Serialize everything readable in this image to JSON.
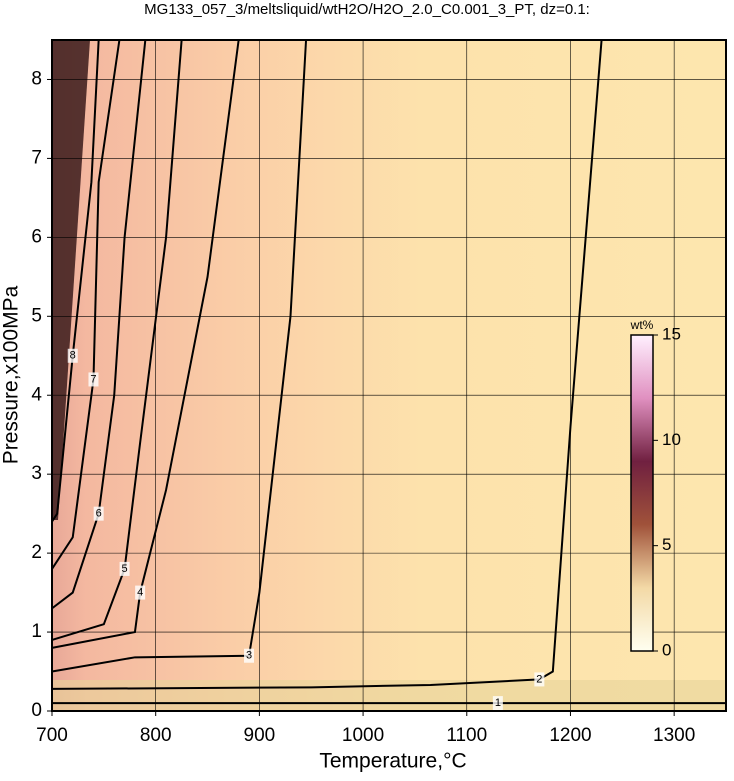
{
  "chart_data": {
    "type": "contour",
    "title": "MG133_057_3/meltsliquid/wtH2O/H2O_2.0_C0.001_3_PT, dz=0.1:",
    "x_label": "Temperature,°C",
    "y_label": "Pressure,x100MPa",
    "xlim": [
      700,
      1350
    ],
    "xticks": [
      700,
      800,
      900,
      1000,
      1100,
      1200,
      1300
    ],
    "ylim": [
      0,
      8.5
    ],
    "yticks": [
      0,
      1,
      2,
      3,
      4,
      5,
      6,
      7,
      8
    ],
    "grid": true,
    "line_color": "#000000",
    "contours": [
      {
        "level": 1,
        "x": [
          700,
          900,
          1130,
          1350
        ],
        "y": [
          0.1,
          0.1,
          0.1,
          0.1
        ]
      },
      {
        "level": 2,
        "x": [
          1230,
          1200,
          1183,
          1170,
          1065,
          950,
          700
        ],
        "y": [
          8.5,
          3.6,
          0.5,
          0.4,
          0.33,
          0.3,
          0.28
        ]
      },
      {
        "level": 3,
        "x": [
          945,
          930,
          900,
          890,
          780,
          700
        ],
        "y": [
          8.5,
          5,
          1.5,
          0.7,
          0.68,
          0.5
        ]
      },
      {
        "level": 4,
        "x": [
          880,
          850,
          810,
          785,
          780,
          700
        ],
        "y": [
          8.5,
          5.5,
          2.8,
          1.5,
          1.0,
          0.8
        ]
      },
      {
        "level": 5,
        "x": [
          825,
          810,
          785,
          770,
          750,
          700
        ],
        "y": [
          8.5,
          6,
          3.4,
          1.8,
          1.1,
          0.9
        ]
      },
      {
        "level": 6,
        "x": [
          790,
          770,
          760,
          745,
          720,
          700
        ],
        "y": [
          8.5,
          6,
          4,
          2.5,
          1.5,
          1.3
        ]
      },
      {
        "level": 7,
        "x": [
          765,
          745,
          740,
          720,
          700
        ],
        "y": [
          8.5,
          6.7,
          4.2,
          2.2,
          1.8
        ]
      },
      {
        "level": 8,
        "x": [
          745,
          738,
          720,
          705,
          700
        ],
        "y": [
          8.5,
          6.7,
          4.5,
          2.5,
          2.4
        ]
      }
    ],
    "colorbar": {
      "label": "wt%",
      "lim": [
        0,
        15
      ],
      "ticks": [
        0,
        5,
        10,
        15
      ],
      "colors": [
        "#fffff0",
        "#f3d9a6",
        "#a0523a",
        "#702040",
        "#e090c0",
        "#fff0ff"
      ]
    }
  }
}
